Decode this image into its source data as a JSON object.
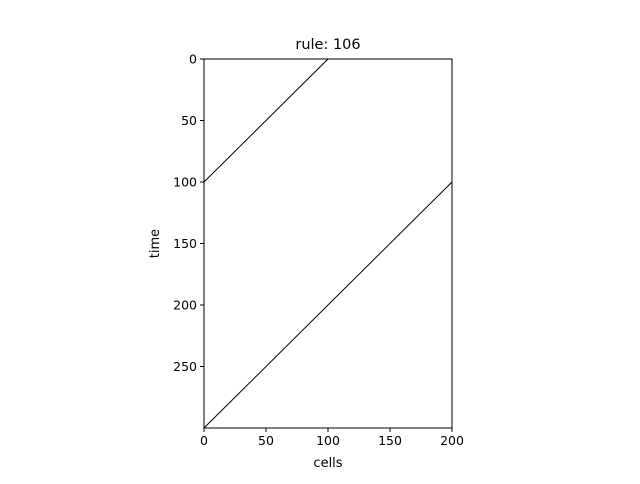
{
  "chart_data": {
    "type": "heatmap",
    "title": "rule: 106",
    "xlabel": "cells",
    "ylabel": "time",
    "xlim": [
      0,
      200
    ],
    "ylim": [
      300,
      0
    ],
    "x_ticks": [
      0,
      50,
      100,
      150,
      200
    ],
    "x_tick_labels": [
      "0",
      "50",
      "100",
      "150",
      "200"
    ],
    "y_ticks": [
      0,
      50,
      100,
      150,
      200,
      250
    ],
    "y_tick_labels": [
      "0",
      "50",
      "100",
      "150",
      "200",
      "250"
    ],
    "grid": false,
    "colormap": [
      "#ffffff",
      "#000000"
    ],
    "pattern": "diagonal line of active cells moving right by one cell per step, wrapping around",
    "series": [
      {
        "points": [
          [
            0,
            100
          ],
          [
            100,
            0
          ]
        ]
      },
      {
        "points": [
          [
            0,
            300
          ],
          [
            200,
            100
          ]
        ]
      }
    ]
  }
}
